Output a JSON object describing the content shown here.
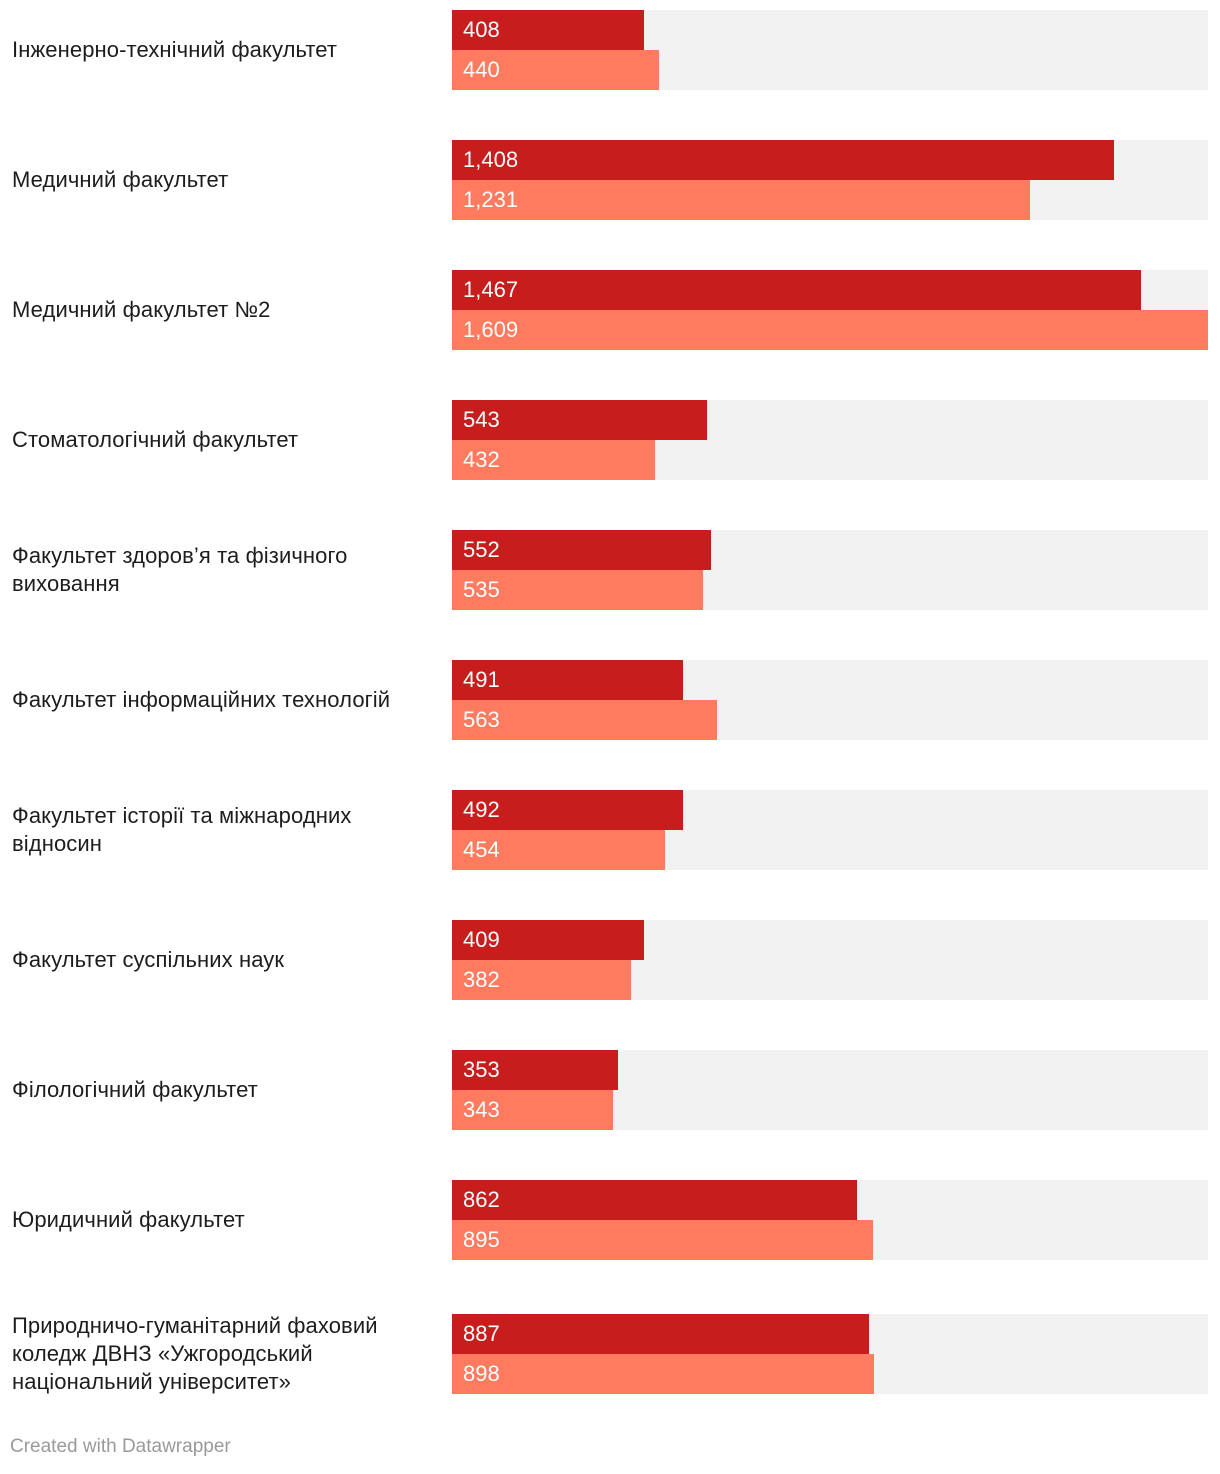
{
  "chart_data": {
    "type": "bar",
    "orientation": "horizontal",
    "xlim": [
      0,
      1609
    ],
    "categories": [
      "Інженерно-технічний факультет",
      "Медичний факультет",
      "Медичний факультет №2",
      "Стоматологічний факультет",
      "Факультет здоров’я та фізичного виховання",
      "Факультет інформаційних технологій",
      "Факультет історії та міжнародних відносин",
      "Факультет суспільних наук",
      "Філологічний факультет",
      "Юридичний факультет",
      "Природничо-гуманітарний фаховий коледж ДВНЗ «Ужгородський національний університет»"
    ],
    "series": [
      {
        "name": "series-1",
        "color": "#c71e1d",
        "values": [
          408,
          1408,
          1467,
          543,
          552,
          491,
          492,
          409,
          353,
          862,
          887
        ],
        "labels": [
          "408",
          "1,408",
          "1,467",
          "543",
          "552",
          "491",
          "492",
          "409",
          "353",
          "862",
          "887"
        ]
      },
      {
        "name": "series-2",
        "color": "#ff7b60",
        "values": [
          440,
          1231,
          1609,
          432,
          535,
          563,
          454,
          382,
          343,
          895,
          898
        ],
        "labels": [
          "440",
          "1,231",
          "1,609",
          "432",
          "535",
          "563",
          "454",
          "382",
          "343",
          "895",
          "898"
        ]
      }
    ],
    "track_color": "#f2f2f2"
  },
  "footer": {
    "credit": "Created with Datawrapper"
  }
}
